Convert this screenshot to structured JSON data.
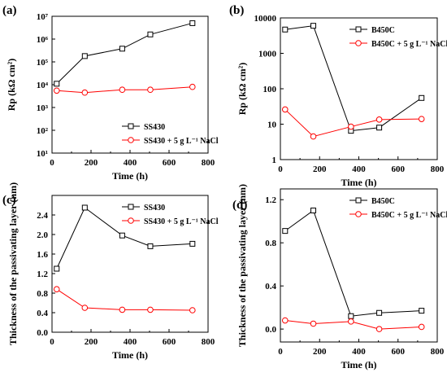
{
  "chart_data": [
    {
      "panel_label": "(a)",
      "type": "line",
      "xlabel": "Time (h)",
      "ylabel": "Rp (kΩ cm²)",
      "xlim": [
        0,
        800
      ],
      "ylim_log10": [
        1,
        7
      ],
      "yscale": "log",
      "x_ticks": [
        "0",
        "200",
        "400",
        "600",
        "800"
      ],
      "y_ticks": [
        "10¹",
        "10²",
        "10³",
        "10⁴",
        "10⁵",
        "10⁶",
        "10⁷"
      ],
      "legend_position": "bottom-right",
      "series": [
        {
          "name": "SS430",
          "color": "#000000",
          "marker": "square",
          "x": [
            24,
            168,
            360,
            504,
            720
          ],
          "y": [
            11000,
            180000,
            380000,
            1600000,
            5000000
          ]
        },
        {
          "name": "SS430 + 5 g L⁻¹ NaCl",
          "color": "#ff0000",
          "marker": "circle",
          "x": [
            24,
            168,
            360,
            504,
            720
          ],
          "y": [
            5500,
            4500,
            6000,
            6000,
            8000
          ]
        }
      ]
    },
    {
      "panel_label": "(b)",
      "type": "line",
      "xlabel": "Time (h)",
      "ylabel": "Rp (kΩ cm²)",
      "xlim": [
        0,
        800
      ],
      "ylim_log10": [
        0,
        4
      ],
      "yscale": "log",
      "x_ticks": [
        "0",
        "200",
        "400",
        "600",
        "800"
      ],
      "y_ticks": [
        "1",
        "10",
        "100",
        "1000",
        "10000"
      ],
      "legend_position": "top-right",
      "series": [
        {
          "name": "B450C",
          "color": "#000000",
          "marker": "square",
          "x": [
            24,
            168,
            360,
            504,
            720
          ],
          "y": [
            4700,
            6000,
            6.5,
            8,
            55
          ]
        },
        {
          "name": "B450C + 5 g L⁻¹ NaCl",
          "color": "#ff0000",
          "marker": "circle",
          "x": [
            24,
            168,
            360,
            504,
            720
          ],
          "y": [
            26,
            4.5,
            8.5,
            13.5,
            14
          ]
        }
      ]
    },
    {
      "panel_label": "(c)",
      "type": "line",
      "xlabel": "Time (h)",
      "ylabel": "Thickness of the passivating layer (nm)",
      "xlim": [
        0,
        800
      ],
      "ylim": [
        0.0,
        2.8
      ],
      "yscale": "linear",
      "x_ticks": [
        "0",
        "200",
        "400",
        "600",
        "800"
      ],
      "y_ticks": [
        "0.0",
        "0.4",
        "0.8",
        "1.2",
        "1.6",
        "2.0",
        "2.4"
      ],
      "y_tick_values": [
        0.0,
        0.4,
        0.8,
        1.2,
        1.6,
        2.0,
        2.4
      ],
      "legend_position": "top-right",
      "series": [
        {
          "name": "SS430",
          "color": "#000000",
          "marker": "square",
          "x": [
            24,
            168,
            360,
            504,
            720
          ],
          "y": [
            1.3,
            2.55,
            1.98,
            1.76,
            1.81
          ]
        },
        {
          "name": "SS430 + 5 g L⁻¹ NaCl",
          "color": "#ff0000",
          "marker": "circle",
          "x": [
            24,
            168,
            360,
            504,
            720
          ],
          "y": [
            0.88,
            0.5,
            0.46,
            0.46,
            0.45
          ]
        }
      ]
    },
    {
      "panel_label": "(d)",
      "type": "line",
      "xlabel": "Time (h)",
      "ylabel": "Thickness of the passivating layer (nm)",
      "xlim": [
        0,
        800
      ],
      "ylim": [
        -0.12,
        1.3
      ],
      "yscale": "linear",
      "x_ticks": [
        "0",
        "200",
        "400",
        "600",
        "800"
      ],
      "y_ticks": [
        "0.0",
        "0.4",
        "0.8",
        "1.2"
      ],
      "y_tick_values": [
        0.0,
        0.4,
        0.8,
        1.2
      ],
      "legend_position": "top-right",
      "series": [
        {
          "name": "B450C",
          "color": "#000000",
          "marker": "square",
          "x": [
            24,
            168,
            360,
            504,
            720
          ],
          "y": [
            0.91,
            1.1,
            0.12,
            0.15,
            0.17
          ]
        },
        {
          "name": "B450C + 5 g L⁻¹ NaCl",
          "color": "#ff0000",
          "marker": "circle",
          "x": [
            24,
            168,
            360,
            504,
            720
          ],
          "y": [
            0.08,
            0.05,
            0.07,
            0.0,
            0.02
          ]
        }
      ]
    }
  ]
}
